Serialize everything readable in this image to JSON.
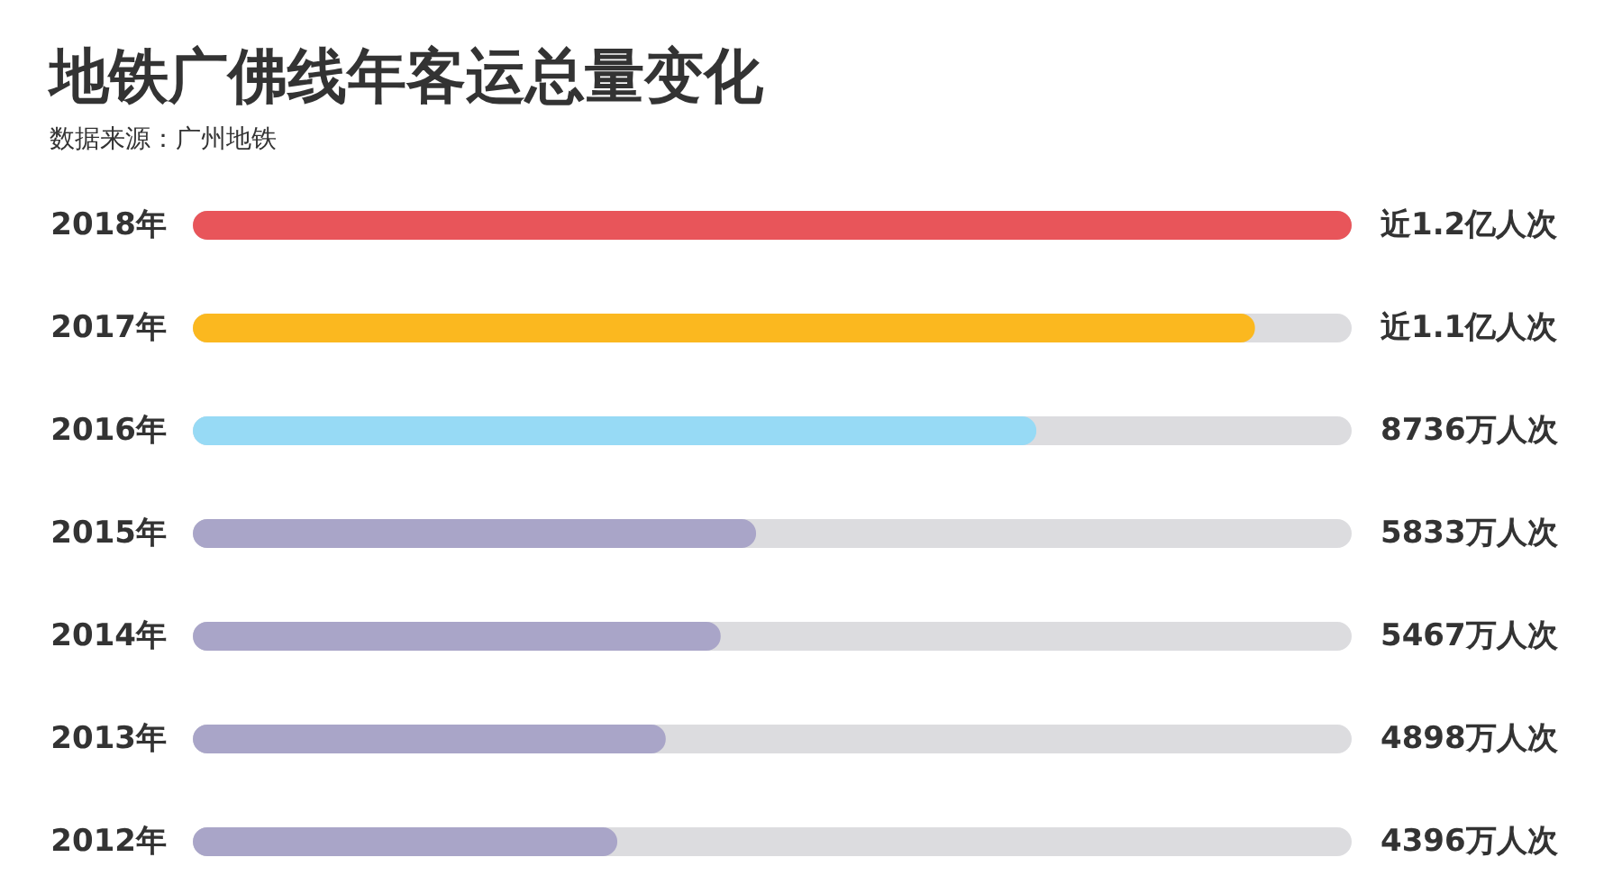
{
  "chart_data": {
    "type": "bar",
    "orientation": "horizontal",
    "title": "地铁广佛线年客运总量变化",
    "annotations": [
      "数据来源：广州地铁"
    ],
    "categories": [
      "2018年",
      "2017年",
      "2016年",
      "2015年",
      "2014年",
      "2013年",
      "2012年"
    ],
    "values": [
      12000,
      11000,
      8736,
      5833,
      5467,
      4898,
      4396
    ],
    "colors": [
      "#e8555a",
      "#fbb81f",
      "#97daf5",
      "#a9a5c8",
      "#a9a5c8",
      "#a9a5c8",
      "#a9a5c8"
    ],
    "value_labels": [
      "近1.2亿人次",
      "近1.1亿人次",
      "8736万人次",
      "5833万人次",
      "5467万人次",
      "4898万人次",
      "4396万人次"
    ],
    "xlim": [
      0,
      12000
    ],
    "tick_labels": "y"
  }
}
